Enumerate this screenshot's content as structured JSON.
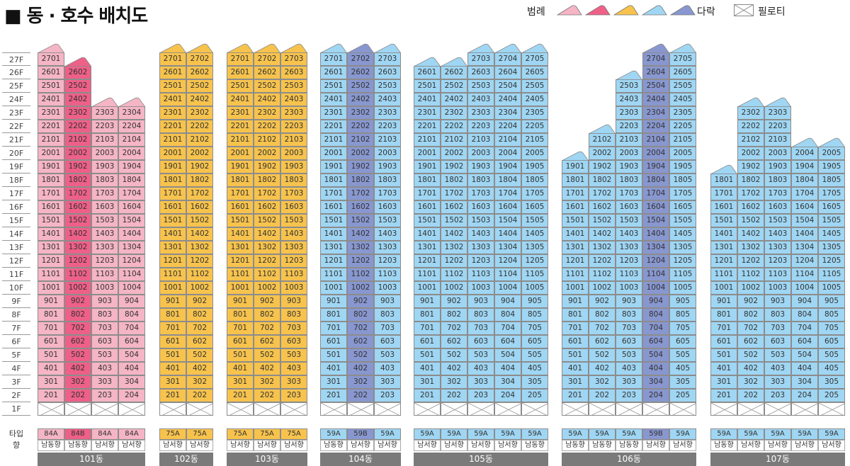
{
  "title": "■ 동 · 호수 배치도",
  "legend": {
    "label": "범례",
    "swatches": [
      {
        "name": "84A",
        "color": "#f5b5c5"
      },
      {
        "name": "84B",
        "color": "#ee6088"
      },
      {
        "name": "75A",
        "color": "#f7c34d"
      },
      {
        "name": "59A",
        "color": "#9fd6f3"
      },
      {
        "name": "59B",
        "color": "#8897cf"
      }
    ],
    "attic_color": "#8897cf",
    "attic_label": "다락",
    "piloti_label": "필로티"
  },
  "floors": [
    "27F",
    "26F",
    "25F",
    "24F",
    "23F",
    "22F",
    "21F",
    "20F",
    "19F",
    "18F",
    "17F",
    "16F",
    "15F",
    "14F",
    "13F",
    "12F",
    "11F",
    "10F",
    "9F",
    "8F",
    "7F",
    "6F",
    "5F",
    "4F",
    "3F",
    "2F",
    "1F"
  ],
  "row_labels": {
    "type": "타입",
    "direction": "향"
  },
  "buildings": [
    {
      "name": "101동",
      "columns": [
        {
          "line": 1,
          "top": 27,
          "type": "84A",
          "color": "#f5b5c5",
          "dir": "남동향"
        },
        {
          "line": 2,
          "top": 26,
          "type": "84B",
          "color": "#ee6088",
          "dir": "남동향"
        },
        {
          "line": 3,
          "top": 23,
          "type": "84A",
          "color": "#f5b5c5",
          "dir": "남서향"
        },
        {
          "line": 4,
          "top": 23,
          "type": "84A",
          "color": "#f5b5c5",
          "dir": "남서향"
        }
      ]
    },
    {
      "name": "102동",
      "columns": [
        {
          "line": 1,
          "top": 27,
          "type": "75A",
          "color": "#f7c34d",
          "dir": "남서향"
        },
        {
          "line": 2,
          "top": 27,
          "type": "75A",
          "color": "#f7c34d",
          "dir": "남서향"
        }
      ]
    },
    {
      "name": "103동",
      "columns": [
        {
          "line": 1,
          "top": 27,
          "type": "75A",
          "color": "#f7c34d",
          "dir": "남서향"
        },
        {
          "line": 2,
          "top": 27,
          "type": "75A",
          "color": "#f7c34d",
          "dir": "남서향"
        },
        {
          "line": 3,
          "top": 27,
          "type": "75A",
          "color": "#f7c34d",
          "dir": "남서향"
        }
      ]
    },
    {
      "name": "104동",
      "columns": [
        {
          "line": 1,
          "top": 27,
          "type": "59A",
          "color": "#9fd6f3",
          "dir": "남동향"
        },
        {
          "line": 2,
          "top": 27,
          "type": "59B",
          "color": "#8897cf",
          "dir": "남서향"
        },
        {
          "line": 3,
          "top": 27,
          "type": "59A",
          "color": "#9fd6f3",
          "dir": "남서향"
        }
      ]
    },
    {
      "name": "105동",
      "columns": [
        {
          "line": 1,
          "top": 26,
          "type": "59A",
          "color": "#9fd6f3",
          "dir": "남서향"
        },
        {
          "line": 2,
          "top": 26,
          "type": "59A",
          "color": "#9fd6f3",
          "dir": "남서향"
        },
        {
          "line": 3,
          "top": 27,
          "type": "59A",
          "color": "#9fd6f3",
          "dir": "남서향"
        },
        {
          "line": 4,
          "top": 27,
          "type": "59A",
          "color": "#9fd6f3",
          "dir": "남서향"
        },
        {
          "line": 5,
          "top": 27,
          "type": "59A",
          "color": "#9fd6f3",
          "dir": "남동향"
        }
      ]
    },
    {
      "name": "106동",
      "columns": [
        {
          "line": 1,
          "top": 19,
          "type": "59A",
          "color": "#9fd6f3",
          "dir": "남동향"
        },
        {
          "line": 2,
          "top": 21,
          "type": "59A",
          "color": "#9fd6f3",
          "dir": "남동향"
        },
        {
          "line": 3,
          "top": 25,
          "type": "59A",
          "color": "#9fd6f3",
          "dir": "남동향"
        },
        {
          "line": 4,
          "top": 27,
          "type": "59B",
          "color": "#8897cf",
          "dir": "남서향"
        },
        {
          "line": 5,
          "top": 27,
          "type": "59A",
          "color": "#9fd6f3",
          "dir": "남서향"
        }
      ]
    },
    {
      "name": "107동",
      "columns": [
        {
          "line": 1,
          "top": 18,
          "type": "59A",
          "color": "#9fd6f3",
          "dir": "남동향"
        },
        {
          "line": 2,
          "top": 23,
          "type": "59A",
          "color": "#9fd6f3",
          "dir": "남서향"
        },
        {
          "line": 3,
          "top": 23,
          "type": "59A",
          "color": "#9fd6f3",
          "dir": "남서향"
        },
        {
          "line": 4,
          "top": 20,
          "type": "59A",
          "color": "#9fd6f3",
          "dir": "남서향"
        },
        {
          "line": 5,
          "top": 20,
          "type": "59A",
          "color": "#9fd6f3",
          "dir": "남서향"
        }
      ]
    }
  ]
}
